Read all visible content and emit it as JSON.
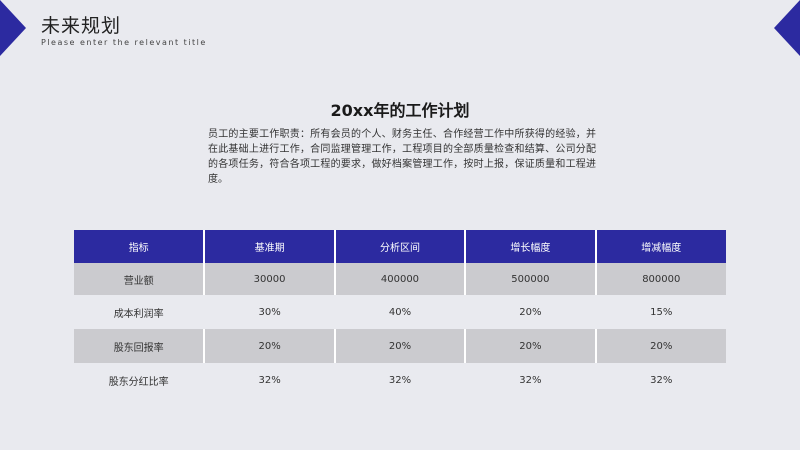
{
  "colors": {
    "accent": "#2c2aa0",
    "background": "#e9eaef",
    "row_shade": "#cbcbcf"
  },
  "header": {
    "title": "未来规划",
    "subtitle": "Please enter the relevant title"
  },
  "section": {
    "title": "20xx年的工作计划",
    "description": "员工的主要工作职责：所有会员的个人、财务主任、合作经营工作中所获得的经验，并在此基础上进行工作，合同监理管理工作，工程项目的全部质量检查和结算、公司分配的各项任务，符合各项工程的要求，做好档案管理工作，按时上报，保证质量和工程进度。"
  },
  "table": {
    "headers": [
      "指标",
      "基准期",
      "分析区间",
      "增长幅度",
      "增减幅度"
    ],
    "rows": [
      [
        "营业额",
        "30000",
        "400000",
        "500000",
        "800000"
      ],
      [
        "成本利润率",
        "30%",
        "40%",
        "20%",
        "15%"
      ],
      [
        "股东回报率",
        "20%",
        "20%",
        "20%",
        "20%"
      ],
      [
        "股东分红比率",
        "32%",
        "32%",
        "32%",
        "32%"
      ]
    ]
  },
  "icons": {
    "corner_left": "triangle-left-decoration-icon",
    "corner_right": "triangle-right-decoration-icon"
  }
}
